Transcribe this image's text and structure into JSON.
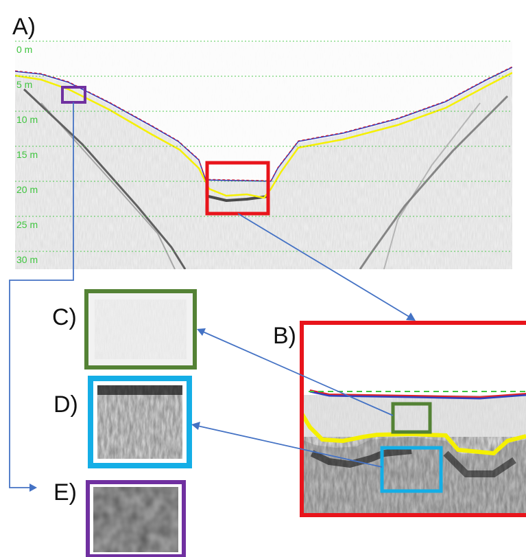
{
  "panels": {
    "a": {
      "label": "A)"
    },
    "b": {
      "label": "B)"
    },
    "c": {
      "label": "C)"
    },
    "d": {
      "label": "D)"
    },
    "e": {
      "label": "E)"
    }
  },
  "depth_labels": [
    "0 m",
    "5 m",
    "10 m",
    "15 m",
    "20 m",
    "25 m",
    "30 m"
  ],
  "colors": {
    "red_box": "#e8141b",
    "green_box": "#548235",
    "blue_box": "#14aee6",
    "purple_box": "#7030a0",
    "arrow": "#4472c4",
    "depth_line": "#3ec43e",
    "surface_red": "#e0202a",
    "surface_blue": "#3040c0",
    "bottom_yellow": "#f5f000"
  }
}
